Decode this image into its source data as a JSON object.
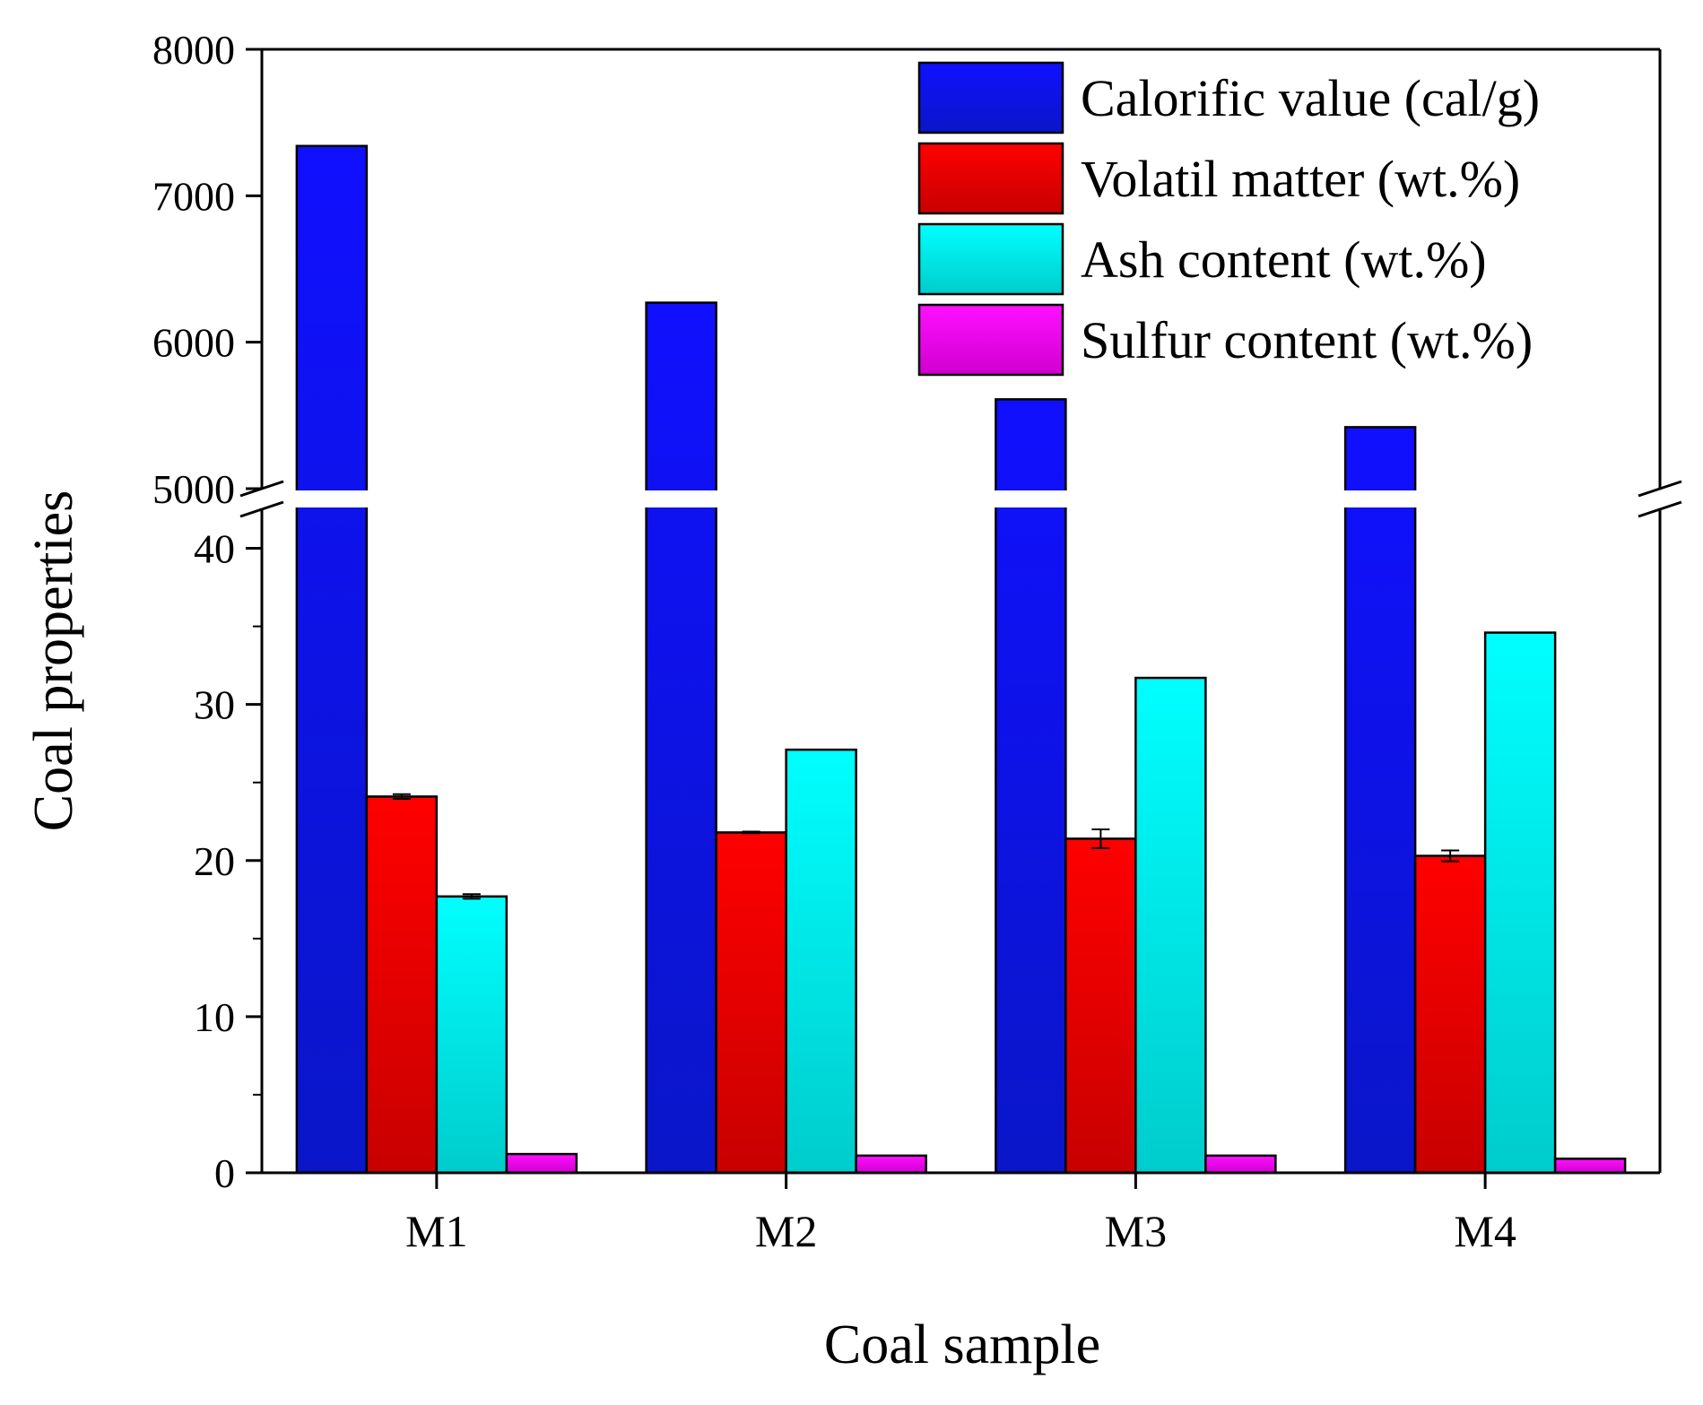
{
  "chart_data": {
    "type": "bar",
    "ylabel": "Coal properties",
    "xlabel": "Coal sample",
    "categories": [
      "M1",
      "M2",
      "M3",
      "M4"
    ],
    "axis_break": {
      "lower_range": [
        0,
        42.5
      ],
      "upper_range": [
        5000,
        8000
      ]
    },
    "y_ticks_lower": [
      "0",
      "10",
      "20",
      "30",
      "40"
    ],
    "y_ticks_upper": [
      "5000",
      "6000",
      "7000",
      "8000"
    ],
    "legend_position": "top-right",
    "series": [
      {
        "name": "Calorific value (cal/g)",
        "color_top": "#1010ff",
        "color_bottom": "#0a16c8",
        "values": [
          7340,
          6270,
          5610,
          5420
        ],
        "errors": [
          0,
          0,
          0,
          0
        ]
      },
      {
        "name": "Volatil matter (wt.%)",
        "color_top": "#ff0000",
        "color_bottom": "#c80000",
        "values": [
          24.1,
          21.8,
          21.4,
          20.3
        ],
        "errors": [
          0.15,
          0.05,
          0.6,
          0.35
        ]
      },
      {
        "name": "Ash content (wt.%)",
        "color_top": "#00ffff",
        "color_bottom": "#00cccc",
        "values": [
          17.7,
          27.1,
          31.7,
          34.6
        ],
        "errors": [
          0.15,
          0,
          0,
          0
        ]
      },
      {
        "name": "Sulfur content (wt.%)",
        "color_top": "#ff10ff",
        "color_bottom": "#d000d0",
        "values": [
          1.2,
          1.1,
          1.1,
          0.9
        ],
        "errors": [
          0,
          0,
          0,
          0
        ]
      }
    ]
  }
}
